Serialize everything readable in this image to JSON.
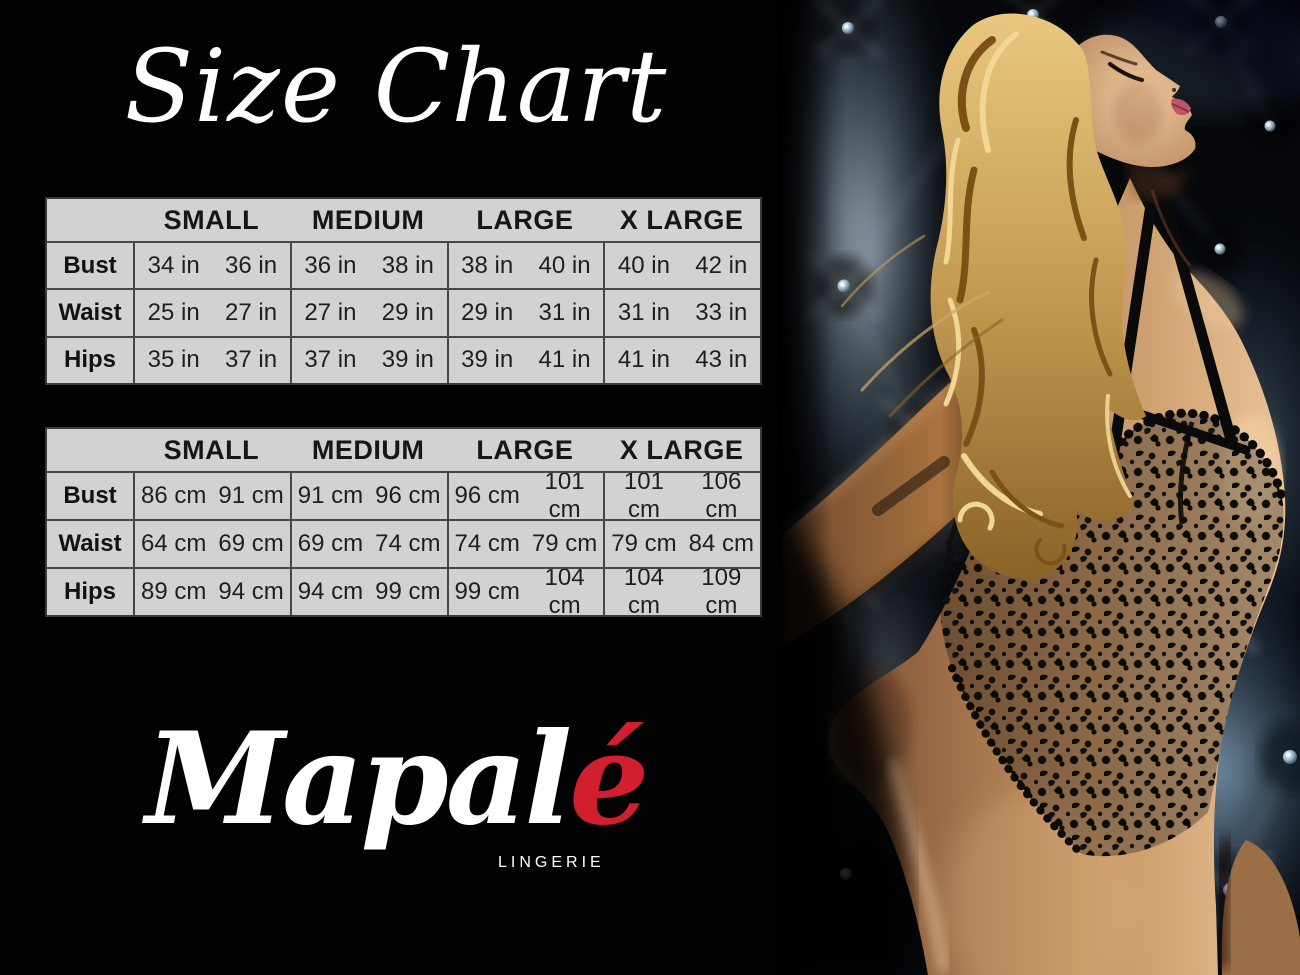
{
  "title": "Size Chart",
  "brand": {
    "name_main": "Mapal",
    "name_accent": "é",
    "tagline": "LINGERIE"
  },
  "photo": {
    "alt": "Blonde model in a black floral lace bodysuit leaning back against dark button-tufted upholstery"
  },
  "colors": {
    "background": "#000000",
    "accent_red": "#d11f2f",
    "table_background": "#d2d2d2",
    "table_grid_line": "#474747",
    "table_text": "#1e1e1e",
    "title_text": "#ffffff"
  },
  "chart_data": [
    {
      "type": "table",
      "unit": "inches",
      "columns": [
        "SMALL",
        "MEDIUM",
        "LARGE",
        "X LARGE"
      ],
      "rows": [
        {
          "label": "Bust",
          "cells": [
            [
              "34 in",
              "36 in"
            ],
            [
              "36 in",
              "38 in"
            ],
            [
              "38 in",
              "40 in"
            ],
            [
              "40 in",
              "42 in"
            ]
          ]
        },
        {
          "label": "Waist",
          "cells": [
            [
              "25 in",
              "27 in"
            ],
            [
              "27 in",
              "29 in"
            ],
            [
              "29 in",
              "31 in"
            ],
            [
              "31 in",
              "33 in"
            ]
          ]
        },
        {
          "label": "Hips",
          "cells": [
            [
              "35 in",
              "37 in"
            ],
            [
              "37 in",
              "39 in"
            ],
            [
              "39 in",
              "41 in"
            ],
            [
              "41 in",
              "43 in"
            ]
          ]
        }
      ]
    },
    {
      "type": "table",
      "unit": "centimeters",
      "columns": [
        "SMALL",
        "MEDIUM",
        "LARGE",
        "X LARGE"
      ],
      "rows": [
        {
          "label": "Bust",
          "cells": [
            [
              "86 cm",
              "91 cm"
            ],
            [
              "91 cm",
              "96 cm"
            ],
            [
              "96 cm",
              "101 cm"
            ],
            [
              "101 cm",
              "106 cm"
            ]
          ]
        },
        {
          "label": "Waist",
          "cells": [
            [
              "64 cm",
              "69 cm"
            ],
            [
              "69 cm",
              "74 cm"
            ],
            [
              "74 cm",
              "79 cm"
            ],
            [
              "79 cm",
              "84 cm"
            ]
          ]
        },
        {
          "label": "Hips",
          "cells": [
            [
              "89 cm",
              "94 cm"
            ],
            [
              "94 cm",
              "99 cm"
            ],
            [
              "99 cm",
              "104 cm"
            ],
            [
              "104 cm",
              "109 cm"
            ]
          ]
        }
      ]
    }
  ]
}
